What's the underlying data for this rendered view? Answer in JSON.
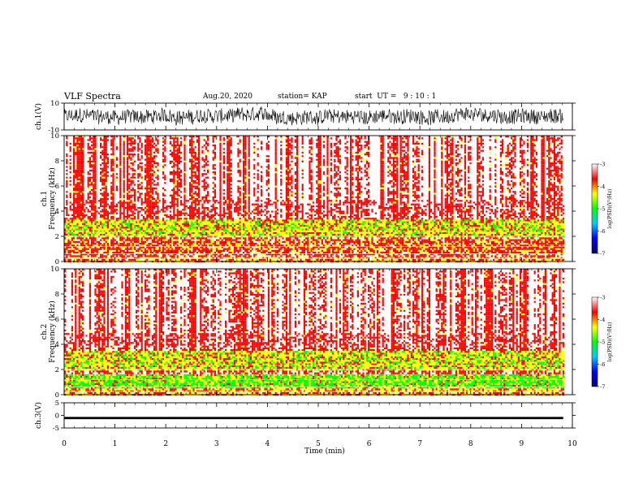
{
  "header": {
    "title": "VLF Spectra",
    "date": "Aug.20, 2020",
    "station": "station= KAP",
    "start": "start  UT =   9 : 10 : 1"
  },
  "chart_data": [
    {
      "type": "line",
      "panel": "ch1-waveform",
      "ylabel": "ch.1(V)",
      "ylim": [
        -10,
        10
      ],
      "yticks": [
        "10",
        "-10"
      ],
      "xlim": [
        0,
        10
      ],
      "x_end": 9.82,
      "description_values": {
        "typical_range": [
          -8,
          8
        ]
      },
      "series": [
        {
          "values_summary": "noise between about -8 and 8 V"
        }
      ]
    },
    {
      "type": "heatmap",
      "panel": "ch1-spectrogram",
      "ylabel": "ch.1\nFrequency (kHz)",
      "ylabel_top": "ch.1",
      "ylabel_bottom": "Frequency  (kHz)",
      "ylim": [
        0,
        10
      ],
      "yticks": [
        "0",
        "2",
        "4",
        "6",
        "8",
        "10"
      ],
      "xlim": [
        0,
        10
      ],
      "x_end": 9.82,
      "colorbar": {
        "label": "log(PSD)(V²/Hz)",
        "range": [
          -7,
          -3
        ],
        "ticks": [
          "-3",
          "-4",
          "-5",
          "-6",
          "-7"
        ],
        "colors": [
          "#000080",
          "#0000ff",
          "#00c8ff",
          "#00ff00",
          "#ffff00",
          "#ff0000",
          "#ffffff"
        ]
      },
      "bands": [
        {
          "from_khz": 0,
          "to_khz": 0.4,
          "level": "yellow-red"
        },
        {
          "from_khz": 0.5,
          "to_khz": 1.8,
          "level": "red-yellow"
        },
        {
          "from_khz": 2.0,
          "to_khz": 3.4,
          "level": "yellow-green"
        },
        {
          "from_khz": 3.4,
          "to_khz": 10,
          "level": "red-white"
        }
      ]
    },
    {
      "type": "heatmap",
      "panel": "ch2-spectrogram",
      "ylabel_top": "ch.2",
      "ylabel_bottom": "Frequency  (kHz)",
      "ylim": [
        0,
        10
      ],
      "yticks": [
        "0",
        "2",
        "4",
        "6",
        "8",
        "10"
      ],
      "xlim": [
        0,
        10
      ],
      "x_end": 9.82,
      "colorbar": {
        "label": "log(PSD)(V²/Hz)",
        "range": [
          -7,
          -3
        ],
        "ticks": [
          "-3",
          "-4",
          "-5",
          "-6",
          "-7"
        ],
        "colors": [
          "#000080",
          "#0000ff",
          "#00c8ff",
          "#00ff00",
          "#ffff00",
          "#ff0000",
          "#ffffff"
        ]
      },
      "bands": [
        {
          "from_khz": 0,
          "to_khz": 0.6,
          "level": "yellow-red"
        },
        {
          "from_khz": 0.6,
          "to_khz": 1.7,
          "level": "green"
        },
        {
          "from_khz": 2.0,
          "to_khz": 3.5,
          "level": "yellow-green"
        },
        {
          "from_khz": 3.5,
          "to_khz": 10,
          "level": "red-white"
        }
      ]
    },
    {
      "type": "line",
      "panel": "ch3-waveform",
      "ylabel": "ch.3(V)",
      "ylim": [
        -5,
        5
      ],
      "yticks": [
        "5",
        "0",
        "-5"
      ],
      "xlim": [
        0,
        10
      ],
      "x_end": 9.82,
      "series": [
        {
          "values_summary": "narrow band around -1 V"
        }
      ]
    }
  ],
  "xaxis": {
    "label": "Time  (min)",
    "ticks": [
      "0",
      "1",
      "2",
      "3",
      "4",
      "5",
      "6",
      "7",
      "8",
      "9",
      "10"
    ]
  },
  "colors": {
    "white": "#ffffff",
    "red": "#ff0000",
    "yellow": "#ffff00",
    "green": "#00ff00",
    "cyan": "#00c8ff",
    "blue": "#0000ff",
    "navy": "#000080"
  }
}
